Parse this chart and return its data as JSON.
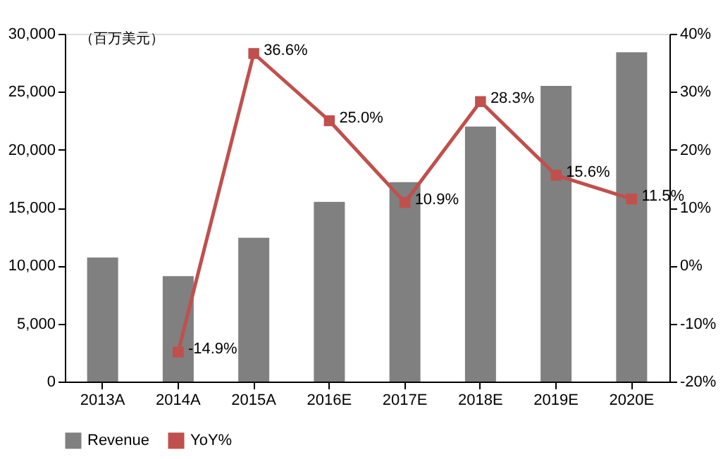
{
  "chart_data": {
    "type": "bar",
    "ylabel": "（百万美元）",
    "categories": [
      "2013A",
      "2014A",
      "2015A",
      "2016E",
      "2017E",
      "2018E",
      "2019E",
      "2020E"
    ],
    "series": [
      {
        "name": "Revenue",
        "color": "#808080",
        "values": [
          10700,
          9100,
          12400,
          15500,
          17200,
          22000,
          25500,
          28400
        ]
      },
      {
        "name": "YoY%",
        "type": "line",
        "axis": "y2",
        "color": "#c0504d",
        "marker": "square",
        "values": [
          null,
          -14.9,
          36.6,
          25.0,
          10.9,
          28.3,
          15.6,
          11.5
        ],
        "value_labels": [
          null,
          "-14.9%",
          "36.6%",
          "25.0%",
          "10.9%",
          "28.3%",
          "15.6%",
          "11.5%"
        ]
      }
    ],
    "ylim": [
      0,
      30000
    ],
    "yticks": [
      {
        "value": 0,
        "label": "0"
      },
      {
        "value": 5000,
        "label": "5,000"
      },
      {
        "value": 10000,
        "label": "10,000"
      },
      {
        "value": 15000,
        "label": "15,000"
      },
      {
        "value": 20000,
        "label": "20,000"
      },
      {
        "value": 25000,
        "label": "25,000"
      },
      {
        "value": 30000,
        "label": "30,000"
      }
    ],
    "y2lim": [
      -20,
      40
    ],
    "y2ticks": [
      {
        "value": -20,
        "label": "-20%"
      },
      {
        "value": -10,
        "label": "-10%"
      },
      {
        "value": 0,
        "label": "0%"
      },
      {
        "value": 10,
        "label": "10%"
      },
      {
        "value": 20,
        "label": "20%"
      },
      {
        "value": 30,
        "label": "30%"
      },
      {
        "value": 40,
        "label": "40%"
      }
    ],
    "grid": false,
    "legend": "bottom"
  }
}
